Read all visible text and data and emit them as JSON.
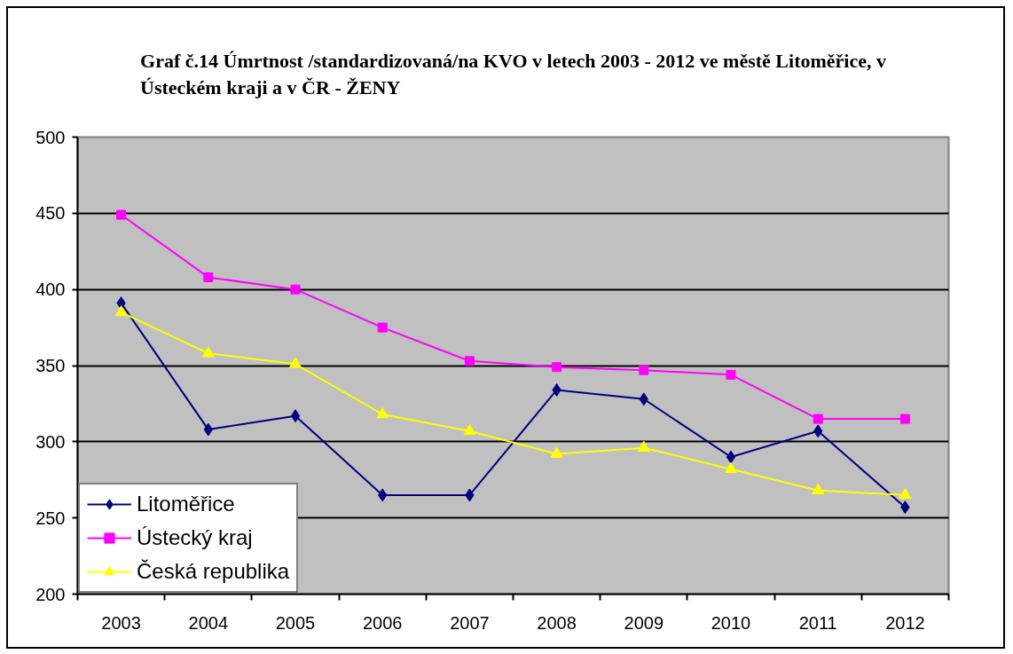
{
  "chart_data": {
    "type": "line",
    "title": "Graf č.14 Úmrtnost /standardizovaná/na KVO v letech 2003 - 2012 ve městě Litoměřice, v Ústeckém kraji a v ČR - ŽENY",
    "categories": [
      "2003",
      "2004",
      "2005",
      "2006",
      "2007",
      "2008",
      "2009",
      "2010",
      "2011",
      "2012"
    ],
    "ylim": [
      200,
      500
    ],
    "yticks": [
      200,
      250,
      300,
      350,
      400,
      450,
      500
    ],
    "grid": "y",
    "legend": "bottom left",
    "line_style": "solid",
    "series": [
      {
        "name": "Litoměřice",
        "color": "#000080",
        "marker": "diamond",
        "values": [
          391,
          308,
          317,
          265,
          265,
          334,
          328,
          290,
          307,
          257
        ]
      },
      {
        "name": "Ústecký kraj",
        "color": "#ff00ff",
        "marker": "square",
        "values": [
          449,
          408,
          400,
          375,
          353,
          349,
          347,
          344,
          315,
          315
        ]
      },
      {
        "name": "Česká republika",
        "color": "#ffff00",
        "marker": "triangle",
        "values": [
          385,
          358,
          351,
          318,
          307,
          292,
          296,
          282,
          268,
          265
        ]
      }
    ]
  }
}
